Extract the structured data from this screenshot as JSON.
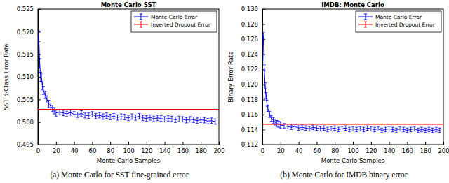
{
  "chart_data": [
    {
      "type": "line",
      "title": "Monte Carlo SST",
      "x_label": "Monte Carlo Samples",
      "y_label": "SST 5-Class Error Rate",
      "caption": "(a) Monte Carlo for SST fine-grained error",
      "xlim": [
        0,
        200
      ],
      "xticks": [
        0,
        20,
        40,
        60,
        80,
        100,
        120,
        140,
        160,
        180,
        200
      ],
      "ylim": [
        0.495,
        0.525
      ],
      "yticks": [
        {
          "value": 0.495,
          "label": "0.495"
        },
        {
          "value": 0.5,
          "label": "0.500"
        },
        {
          "value": 0.505,
          "label": "0.505"
        },
        {
          "value": 0.51,
          "label": "0.510"
        },
        {
          "value": 0.515,
          "label": "0.515"
        },
        {
          "value": 0.52,
          "label": "0.520"
        },
        {
          "value": 0.525,
          "label": "0.525"
        }
      ],
      "legend": "upper right",
      "series": [
        {
          "name": "Monte Carlo Error",
          "type": "errorbar",
          "color": "#0000ff",
          "x": [
            1,
            2,
            3,
            4,
            5,
            6,
            8,
            10,
            12,
            14,
            16,
            18,
            20,
            24,
            28,
            32,
            36,
            40,
            44,
            48,
            52,
            56,
            60,
            64,
            68,
            72,
            76,
            80,
            84,
            88,
            92,
            96,
            100,
            104,
            108,
            112,
            116,
            120,
            124,
            128,
            132,
            136,
            140,
            144,
            148,
            152,
            156,
            160,
            164,
            168,
            172,
            176,
            180,
            184,
            188,
            192,
            196
          ],
          "values": [
            0.519,
            0.513,
            0.51,
            0.5098,
            0.508,
            0.507,
            0.506,
            0.505,
            0.504,
            0.5035,
            0.503,
            0.5025,
            0.502,
            0.5022,
            0.502,
            0.5018,
            0.5021,
            0.5017,
            0.5016,
            0.5019,
            0.5015,
            0.5014,
            0.5017,
            0.5013,
            0.5015,
            0.5012,
            0.5014,
            0.5011,
            0.5013,
            0.501,
            0.5012,
            0.5011,
            0.5009,
            0.5012,
            0.501,
            0.5013,
            0.5009,
            0.5008,
            0.501,
            0.5007,
            0.5009,
            0.5008,
            0.5006,
            0.5008,
            0.5007,
            0.5005,
            0.5007,
            0.5006,
            0.5004,
            0.5006,
            0.5005,
            0.5003,
            0.5005,
            0.5004,
            0.5002,
            0.5003,
            0.5001
          ],
          "errors": [
            0.0012,
            0.0011,
            0.001,
            0.001,
            0.0009,
            0.0009,
            0.0008,
            0.0008,
            0.0008,
            0.0007,
            0.0007,
            0.0007,
            0.0007,
            0.0006,
            0.0006,
            0.0006,
            0.0006,
            0.0006,
            0.0006,
            0.0006,
            0.0006,
            0.0006,
            0.0006,
            0.0006,
            0.0006,
            0.0006,
            0.0006,
            0.0006,
            0.0006,
            0.0006,
            0.0006,
            0.0006,
            0.0006,
            0.0006,
            0.0006,
            0.0006,
            0.0006,
            0.0006,
            0.0006,
            0.0006,
            0.0006,
            0.0006,
            0.0006,
            0.0006,
            0.0006,
            0.0006,
            0.0006,
            0.0006,
            0.0006,
            0.0006,
            0.0006,
            0.0006,
            0.0006,
            0.0006,
            0.0006,
            0.0006,
            0.0006
          ]
        },
        {
          "name": "Inverted Dropout Error",
          "type": "line",
          "color": "#ff0000",
          "x": [
            0,
            200
          ],
          "values": [
            0.5028,
            0.5028
          ]
        }
      ]
    },
    {
      "type": "line",
      "title": "IMDB: Monte Carlo",
      "x_label": "Monte Carlo Samples",
      "y_label": "Binary Error Rate",
      "caption": "(b) Monte Carlo for IMDB binary error",
      "xlim": [
        0,
        200
      ],
      "xticks": [
        0,
        20,
        40,
        60,
        80,
        100,
        120,
        140,
        160,
        180,
        200
      ],
      "ylim": [
        0.112,
        0.13
      ],
      "yticks": [
        {
          "value": 0.112,
          "label": "0.112"
        },
        {
          "value": 0.114,
          "label": "0.114"
        },
        {
          "value": 0.116,
          "label": "0.116"
        },
        {
          "value": 0.118,
          "label": "0.118"
        },
        {
          "value": 0.12,
          "label": "0.120"
        },
        {
          "value": 0.122,
          "label": "0.122"
        },
        {
          "value": 0.124,
          "label": "0.124"
        },
        {
          "value": 0.126,
          "label": "0.126"
        },
        {
          "value": 0.128,
          "label": "0.128"
        },
        {
          "value": 0.13,
          "label": "0.130"
        }
      ],
      "legend": "upper right",
      "series": [
        {
          "name": "Monte Carlo Error",
          "type": "errorbar",
          "color": "#0000ff",
          "x": [
            1,
            2,
            3,
            4,
            5,
            6,
            8,
            10,
            12,
            14,
            16,
            18,
            20,
            24,
            28,
            32,
            36,
            40,
            44,
            48,
            52,
            56,
            60,
            64,
            68,
            72,
            76,
            80,
            84,
            88,
            92,
            96,
            100,
            104,
            108,
            112,
            116,
            120,
            124,
            128,
            132,
            136,
            140,
            144,
            148,
            152,
            156,
            160,
            164,
            168,
            172,
            176,
            180,
            184,
            188,
            192,
            196
          ],
          "values": [
            0.1265,
            0.1222,
            0.1198,
            0.1185,
            0.1175,
            0.1168,
            0.116,
            0.1155,
            0.1152,
            0.115,
            0.1148,
            0.1147,
            0.1146,
            0.1145,
            0.1144,
            0.1143,
            0.1144,
            0.1142,
            0.1143,
            0.1142,
            0.1141,
            0.1143,
            0.1142,
            0.1141,
            0.1142,
            0.114,
            0.1141,
            0.1142,
            0.114,
            0.1141,
            0.1142,
            0.114,
            0.1141,
            0.114,
            0.1141,
            0.114,
            0.1142,
            0.1141,
            0.114,
            0.1141,
            0.1139,
            0.114,
            0.1141,
            0.114,
            0.1139,
            0.1141,
            0.114,
            0.1139,
            0.114,
            0.1141,
            0.1139,
            0.114,
            0.1139,
            0.114,
            0.1139,
            0.114,
            0.1139
          ],
          "errors": [
            0.0004,
            0.0004,
            0.0004,
            0.0004,
            0.0004,
            0.0004,
            0.0004,
            0.0004,
            0.0004,
            0.0004,
            0.0004,
            0.0004,
            0.0004,
            0.0003,
            0.0003,
            0.0003,
            0.0003,
            0.0003,
            0.0003,
            0.0003,
            0.0003,
            0.0003,
            0.0003,
            0.0003,
            0.0003,
            0.0003,
            0.0003,
            0.0003,
            0.0003,
            0.0003,
            0.0003,
            0.0003,
            0.0003,
            0.0003,
            0.0003,
            0.0003,
            0.0003,
            0.0003,
            0.0003,
            0.0003,
            0.0003,
            0.0003,
            0.0003,
            0.0003,
            0.0003,
            0.0003,
            0.0003,
            0.0003,
            0.0003,
            0.0003,
            0.0003,
            0.0003,
            0.0003,
            0.0003,
            0.0003,
            0.0003,
            0.0003
          ]
        },
        {
          "name": "Inverted Dropout Error",
          "type": "line",
          "color": "#ff0000",
          "x": [
            0,
            200
          ],
          "values": [
            0.1147,
            0.1147
          ]
        }
      ]
    }
  ]
}
